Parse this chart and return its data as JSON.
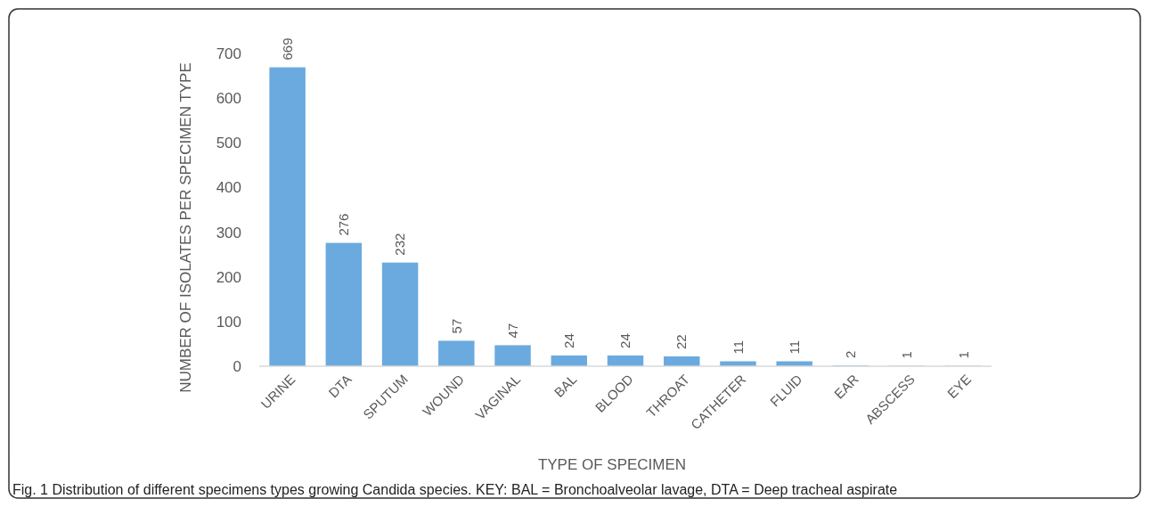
{
  "chart_data": {
    "type": "bar",
    "xlabel": "TYPE OF SPECIMEN",
    "ylabel": "NUMBER OF ISOLATES PER SPECIMEN TYPE",
    "categories": [
      "URINE",
      "DTA",
      "SPUTUM",
      "WOUND",
      "VAGINAL",
      "BAL",
      "BLOOD",
      "THROAT",
      "CATHETER",
      "FLUID",
      "EAR",
      "ABSCESS",
      "EYE"
    ],
    "values": [
      669,
      276,
      232,
      57,
      47,
      24,
      24,
      22,
      11,
      11,
      2,
      1,
      1
    ],
    "color": "#6aaadf",
    "ylim": [
      0,
      700
    ],
    "yticks": [
      0,
      100,
      200,
      300,
      400,
      500,
      600,
      700
    ],
    "grid": false,
    "data_labels": true,
    "annotations": [
      "Fig. 1 Distribution of different specimens types growing Candida species. KEY: BAL = Bronchoalveolar lavage, DTA = Deep tracheal aspirate"
    ]
  }
}
